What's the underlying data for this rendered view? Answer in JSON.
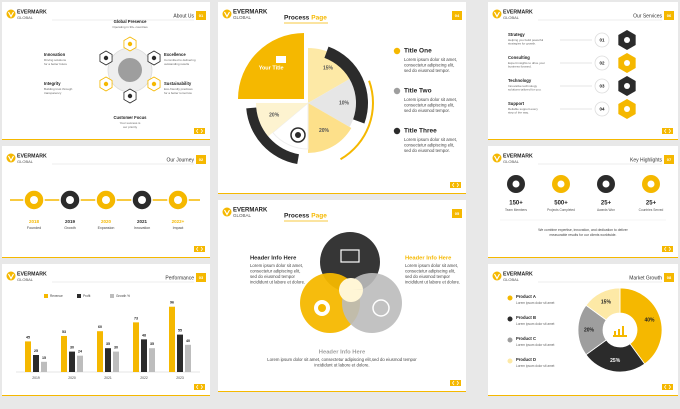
{
  "brand": {
    "name": "EVERMARK",
    "sub": "GLOBAL"
  },
  "about": {
    "title": "About Us",
    "page": "01",
    "items": [
      {
        "title": "Global Presence",
        "text": [
          "Operating in 30+ countries"
        ]
      },
      {
        "title": "Innovation",
        "text": [
          "Driving solutions",
          "for a better future"
        ]
      },
      {
        "title": "Integrity",
        "text": [
          "Building trust through",
          "transparency"
        ]
      },
      {
        "title": "Excellence",
        "text": [
          "Committed to delivering",
          "outstanding results"
        ]
      },
      {
        "title": "Sustainability",
        "text": [
          "Eco-friendly practices",
          "for a better tomorrow"
        ]
      },
      {
        "title": "Customer Focus",
        "text": [
          "Your success is",
          "our priority"
        ]
      }
    ]
  },
  "journey": {
    "title": "Our Journey",
    "page": "02",
    "milestones": [
      {
        "year": "2018",
        "label": "Founded"
      },
      {
        "year": "2019",
        "label": "Growth"
      },
      {
        "year": "2020",
        "label": "Expansion"
      },
      {
        "year": "2021",
        "label": "Innovation"
      },
      {
        "year": "2022+",
        "label": "Impact"
      }
    ]
  },
  "performance": {
    "title": "Performance",
    "page": "03",
    "legend": [
      "Revenue",
      "Profit",
      "Growth %"
    ],
    "years": [
      "2019",
      "2020",
      "2021",
      "2022",
      "2023"
    ],
    "series": [
      [
        45,
        53,
        60,
        73,
        96
      ],
      [
        25,
        30,
        35,
        48,
        55
      ],
      [
        15,
        24,
        30,
        35,
        40
      ]
    ]
  },
  "process1": {
    "title": "Process",
    "accent": "Page",
    "page": "04",
    "slices": [
      "Your Title",
      "15%",
      "10%",
      "20%",
      "20%"
    ],
    "items": [
      {
        "title": "Title One",
        "text": [
          "Lorem ipsum dolor sit amet,",
          "consectetur adipiscing elit,",
          "sed do eiusmod tempor."
        ]
      },
      {
        "title": "Title Two",
        "text": [
          "Lorem ipsum dolor sit amet,",
          "consectetur adipiscing elit,",
          "sed do eiusmod tempor."
        ]
      },
      {
        "title": "Title Three",
        "text": [
          "Lorem ipsum dolor sit amet,",
          "consectetur adipiscing elit,",
          "sed do eiusmod tempor."
        ]
      }
    ]
  },
  "process2": {
    "title": "Process",
    "accent": "Page",
    "page": "05",
    "headers": [
      {
        "title": "Header Info Here",
        "text": [
          "Lorem ipsum dolor sit amet,",
          "consectetur adipiscing elit,",
          "sed do eiusmod tempor",
          "incididunt ut labore et dolore."
        ]
      },
      {
        "title": "Header Info Here",
        "text": [
          "Lorem ipsum dolor sit amet,",
          "consectetur adipiscing elit,",
          "sed do eiusmod tempor",
          "incididunt ut labore et dolore."
        ]
      },
      {
        "title": "Header Info Here",
        "text": [
          "Lorem ipsum dolor sit amet, consectetur adipiscing elit,sed do eiusmod tempor",
          "incididunt ut labore et dolore."
        ]
      }
    ]
  },
  "services": {
    "title": "Our Services",
    "page": "06",
    "items": [
      {
        "title": "Strategy",
        "num": "01",
        "text": [
          "Helping you build powerful",
          "strategies for growth."
        ]
      },
      {
        "title": "Consulting",
        "num": "02",
        "text": [
          "Expert insights to drive your",
          "business forward."
        ]
      },
      {
        "title": "Technology",
        "num": "03",
        "text": [
          "Innovative technology",
          "solutions tailored for you."
        ]
      },
      {
        "title": "Support",
        "num": "04",
        "text": [
          "Reliable support every",
          "step of the way."
        ]
      }
    ]
  },
  "highlights": {
    "title": "Key Highlights",
    "page": "07",
    "stats": [
      {
        "value": "150+",
        "label": "Team Members"
      },
      {
        "value": "500+",
        "label": "Projects Completed"
      },
      {
        "value": "25+",
        "label": "Awards Won"
      },
      {
        "value": "25+",
        "label": "Countries Served"
      }
    ],
    "note": [
      "We combine expertise, innovation, and dedication to deliver",
      "measurable results for our clients worldwide."
    ]
  },
  "market": {
    "title": "Market Growth",
    "page": "08",
    "products": [
      {
        "name": "Product A",
        "text": [
          "Lorem ipsum dolor sit amet"
        ]
      },
      {
        "name": "Product B",
        "text": [
          "Lorem ipsum dolor sit amet"
        ]
      },
      {
        "name": "Product C",
        "text": [
          "Lorem ipsum dolor sit amet"
        ]
      },
      {
        "name": "Product D",
        "text": [
          "Lorem ipsum dolor sit amet"
        ]
      }
    ],
    "values": [
      40,
      25,
      20,
      15
    ],
    "value_labels": [
      "40%",
      "25%",
      "20%",
      "15%"
    ]
  }
}
